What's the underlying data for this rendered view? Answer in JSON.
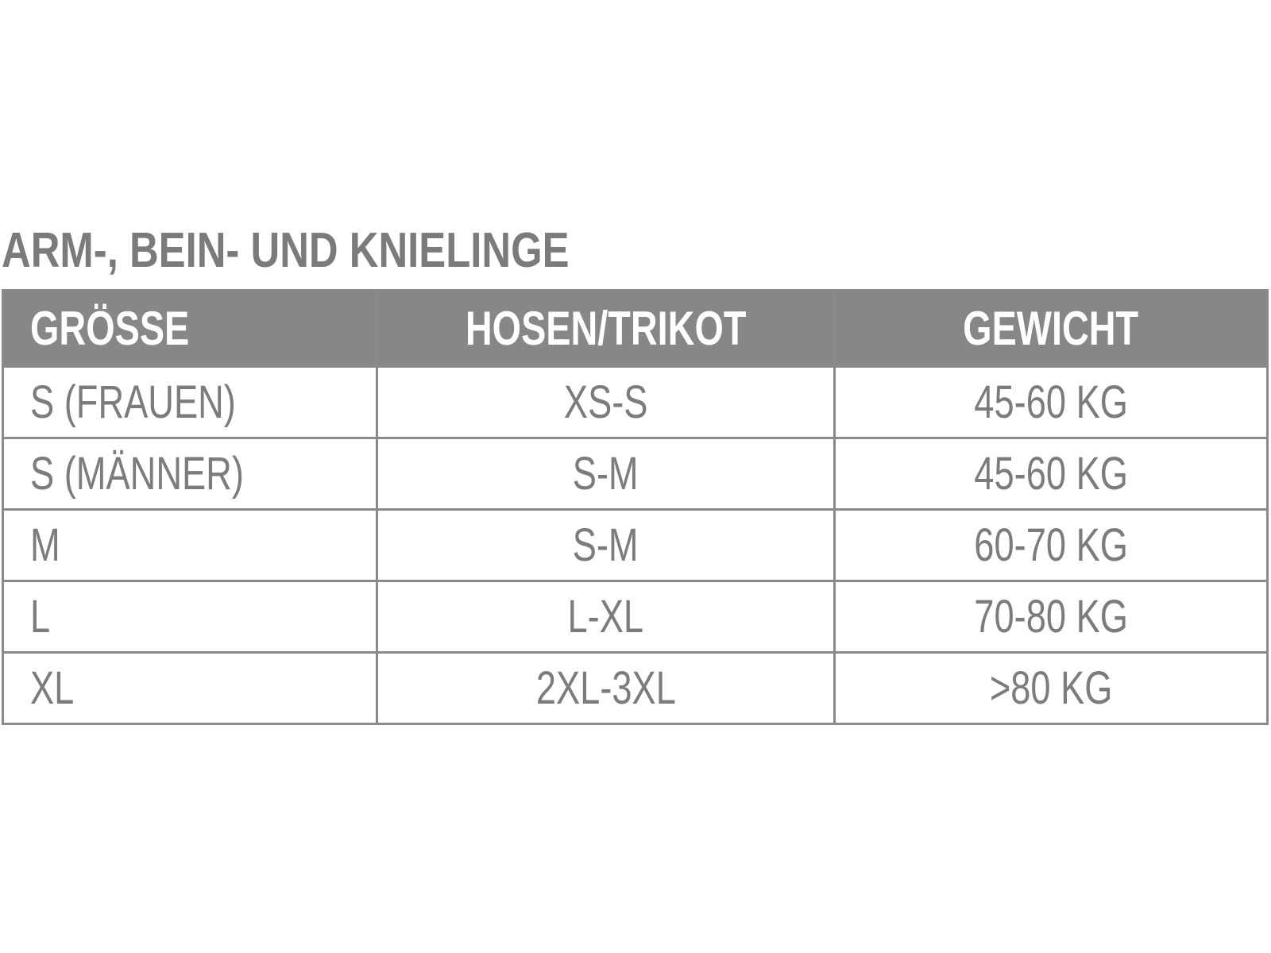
{
  "title": "ARM-, BEIN- UND KNIELINGE",
  "colors": {
    "header_bg": "#878787",
    "header_text": "#ffffff",
    "text": "#7c7c7c",
    "border": "#8a8a8a"
  },
  "table": {
    "headers": [
      "GRÖSSE",
      "HOSEN/TRIKOT",
      "GEWICHT"
    ],
    "rows": [
      [
        "S (FRAUEN)",
        "XS-S",
        "45-60 KG"
      ],
      [
        "S (MÄNNER)",
        "S-M",
        "45-60 KG"
      ],
      [
        "M",
        "S-M",
        "60-70 KG"
      ],
      [
        "L",
        "L-XL",
        "70-80 KG"
      ],
      [
        "XL",
        "2XL-3XL",
        ">80 KG"
      ]
    ]
  }
}
